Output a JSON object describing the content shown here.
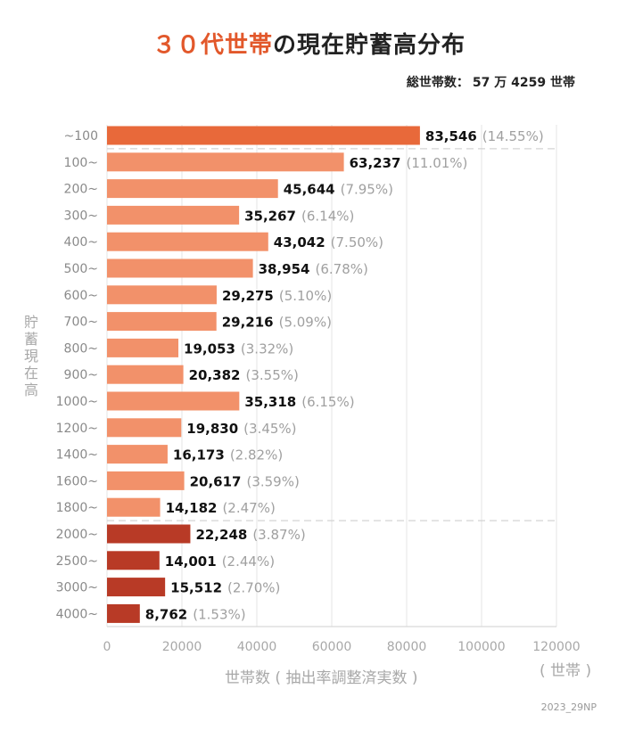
{
  "title_highlight": "３０代世帯",
  "title_rest": "の現在貯蓄高分布",
  "total_label": "総世帯数：",
  "total_value": "57 万 4259 世帯",
  "credit": "2023_29NP",
  "colors": {
    "top": "#e8693a",
    "mid": "#f2916a",
    "high": "#b83a26",
    "pct": "#a0a0a0"
  },
  "chart_data": {
    "type": "bar",
    "orientation": "horizontal",
    "title": "３０代世帯の現在貯蓄高分布",
    "xlabel": "世帯数 ( 抽出率調整済実数 )",
    "xunit": "( 世帯 )",
    "ylabel": "貯蓄現在高",
    "xlim": [
      0,
      120000
    ],
    "xticks": [
      0,
      20000,
      40000,
      60000,
      80000,
      100000,
      120000
    ],
    "categories": [
      "~100",
      "100~",
      "200~",
      "300~",
      "400~",
      "500~",
      "600~",
      "700~",
      "800~",
      "900~",
      "1000~",
      "1200~",
      "1400~",
      "1600~",
      "1800~",
      "2000~",
      "2500~",
      "3000~",
      "4000~"
    ],
    "values": [
      83546,
      63237,
      45644,
      35267,
      43042,
      38954,
      29275,
      29216,
      19053,
      20382,
      35318,
      19830,
      16173,
      20617,
      14182,
      22248,
      14001,
      15512,
      8762
    ],
    "value_labels": [
      "83,546",
      "63,237",
      "45,644",
      "35,267",
      "43,042",
      "38,954",
      "29,275",
      "29,216",
      "19,053",
      "20,382",
      "35,318",
      "19,830",
      "16,173",
      "20,617",
      "14,182",
      "22,248",
      "14,001",
      "15,512",
      "8,762"
    ],
    "percent_labels": [
      "(14.55%)",
      "(11.01%)",
      "(7.95%)",
      "(6.14%)",
      "(7.50%)",
      "(6.78%)",
      "(5.10%)",
      "(5.09%)",
      "(3.32%)",
      "(3.55%)",
      "(6.15%)",
      "(3.45%)",
      "(2.82%)",
      "(3.59%)",
      "(2.47%)",
      "(3.87%)",
      "(2.44%)",
      "(2.70%)",
      "(1.53%)"
    ],
    "groups": [
      "top",
      "mid",
      "mid",
      "mid",
      "mid",
      "mid",
      "mid",
      "mid",
      "mid",
      "mid",
      "mid",
      "mid",
      "mid",
      "mid",
      "mid",
      "high",
      "high",
      "high",
      "high"
    ],
    "grid": true,
    "dashed_separators_after": [
      "~100",
      "1800~"
    ]
  }
}
